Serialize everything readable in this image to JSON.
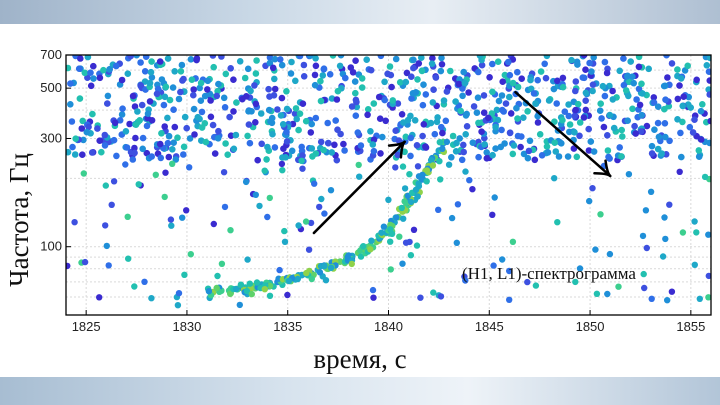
{
  "chart_data": {
    "type": "scatter",
    "xlabel": "время, с",
    "ylabel": "Частота, Гц",
    "xlim": [
      1824,
      1856
    ],
    "ylim": [
      50,
      700
    ],
    "yscale": "log",
    "xticks": [
      1825,
      1830,
      1835,
      1840,
      1845,
      1850,
      1855
    ],
    "yticks": [
      100,
      300,
      500,
      700
    ],
    "grid": true,
    "annotation": "(H1, L1)-спектрограмма",
    "arrows": [
      {
        "from": [
          1836.3,
          115
        ],
        "to": [
          1840.8,
          290
        ]
      },
      {
        "from": [
          1846.3,
          480
        ],
        "to": [
          1851.0,
          205
        ]
      }
    ],
    "colors": {
      "point_palette": [
        "#3a2bd0",
        "#3d50e0",
        "#2f6fe8",
        "#1f8fd8",
        "#1ea8c8",
        "#22c0b0",
        "#3ccf8f",
        "#5ed26a",
        "#8fd24a"
      ],
      "axis": "#000000",
      "grid": "#d9d9d9"
    },
    "series": [
      {
        "name": "chirp",
        "points": [
          [
            1831.3,
            63
          ],
          [
            1831.7,
            64
          ],
          [
            1832.1,
            64
          ],
          [
            1832.5,
            65
          ],
          [
            1832.9,
            66
          ],
          [
            1833.3,
            67
          ],
          [
            1833.7,
            68
          ],
          [
            1834.1,
            69
          ],
          [
            1834.5,
            70
          ],
          [
            1834.9,
            72
          ],
          [
            1835.3,
            73
          ],
          [
            1835.7,
            75
          ],
          [
            1836.1,
            77
          ],
          [
            1836.5,
            79
          ],
          [
            1836.9,
            81
          ],
          [
            1837.3,
            83
          ],
          [
            1837.6,
            86
          ],
          [
            1837.9,
            88
          ],
          [
            1838.2,
            91
          ],
          [
            1838.5,
            94
          ],
          [
            1838.8,
            97
          ],
          [
            1839.1,
            101
          ],
          [
            1839.4,
            105
          ],
          [
            1839.6,
            110
          ],
          [
            1839.9,
            115
          ],
          [
            1840.1,
            121
          ],
          [
            1840.3,
            128
          ],
          [
            1840.5,
            135
          ],
          [
            1840.7,
            143
          ],
          [
            1840.9,
            152
          ],
          [
            1841.1,
            162
          ],
          [
            1841.3,
            173
          ],
          [
            1841.5,
            185
          ],
          [
            1841.7,
            198
          ],
          [
            1841.9,
            212
          ],
          [
            1842.1,
            228
          ],
          [
            1842.3,
            246
          ],
          [
            1842.5,
            265
          ],
          [
            1842.7,
            285
          ],
          [
            1833.0,
            62
          ],
          [
            1834.0,
            67
          ],
          [
            1835.0,
            71
          ],
          [
            1836.0,
            75
          ],
          [
            1837.0,
            80
          ],
          [
            1838.0,
            87
          ],
          [
            1839.0,
            99
          ],
          [
            1840.0,
            118
          ],
          [
            1841.0,
            157
          ],
          [
            1842.0,
            220
          ]
        ]
      }
    ]
  }
}
